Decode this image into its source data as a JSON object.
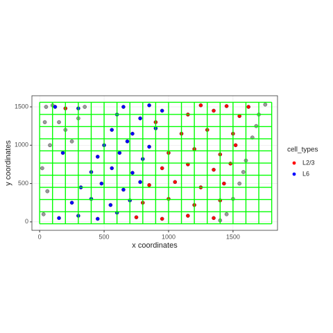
{
  "chart_data": {
    "type": "scatter",
    "xlabel": "x coordinates",
    "ylabel": "y coordinates",
    "legend_title": "cell_types",
    "legend": "right",
    "grid": true,
    "xlim": [
      -60,
      1845
    ],
    "ylim": [
      -110,
      1645
    ],
    "xticks": [
      0,
      500,
      1000,
      1500
    ],
    "yticks": [
      0,
      500,
      1000,
      1500
    ],
    "bin_color": "#00ff00",
    "bin_x": [
      0,
      100,
      200,
      300,
      400,
      500,
      600,
      700,
      800,
      900,
      1000,
      1100,
      1200,
      1300,
      1400,
      1500,
      1600,
      1700,
      1800
    ],
    "bin_y": [
      -25,
      133,
      292,
      450,
      609,
      767,
      926,
      1084,
      1243,
      1401,
      1560
    ],
    "series": [
      {
        "color": "#9a9a9a",
        "x": [
          30,
          60,
          20,
          80,
          40,
          100,
          200,
          300,
          150,
          250,
          350,
          50,
          1500,
          1550,
          1600,
          1650,
          1700,
          1750,
          1450,
          1400,
          1580,
          1680
        ],
        "y": [
          100,
          400,
          700,
          1000,
          1300,
          1520,
          1200,
          1350,
          1300,
          1050,
          1500,
          1500,
          300,
          500,
          800,
          1100,
          1400,
          1530,
          100,
          20,
          650,
          1250
        ]
      },
      {
        "name": "L2/3",
        "color": "#ff0000",
        "x": [
          750,
          950,
          1150,
          1350,
          800,
          1000,
          1200,
          1400,
          850,
          1050,
          1250,
          1430,
          950,
          1150,
          1350,
          1480,
          1000,
          1200,
          1400,
          1520,
          1100,
          1300,
          1500,
          1150,
          1350,
          1550,
          1250,
          1450,
          1620,
          200,
          900
        ],
        "y": [
          60,
          40,
          80,
          50,
          250,
          300,
          220,
          280,
          480,
          520,
          450,
          500,
          700,
          750,
          680,
          760,
          900,
          950,
          880,
          1000,
          1150,
          1200,
          1150,
          1400,
          1450,
          1380,
          1520,
          1510,
          1500,
          1480,
          1300
        ]
      },
      {
        "name": "L6",
        "color": "#0000ff",
        "x": [
          150,
          300,
          450,
          600,
          250,
          400,
          550,
          700,
          320,
          480,
          650,
          780,
          400,
          560,
          720,
          450,
          620,
          800,
          500,
          680,
          850,
          560,
          720,
          900,
          600,
          780,
          950,
          650,
          850,
          180,
          120,
          300
        ],
        "y": [
          50,
          80,
          40,
          120,
          250,
          300,
          220,
          280,
          450,
          500,
          420,
          520,
          650,
          700,
          640,
          850,
          900,
          820,
          1000,
          1050,
          980,
          1200,
          1150,
          1220,
          1400,
          1350,
          1450,
          1500,
          1520,
          900,
          1500,
          1480
        ]
      }
    ]
  }
}
